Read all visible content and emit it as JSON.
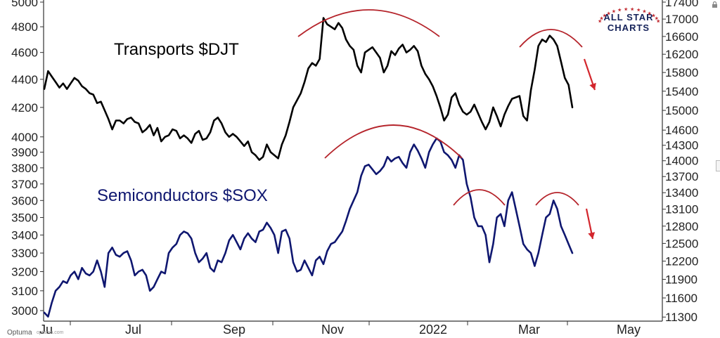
{
  "chart_data": {
    "type": "line",
    "x_ticks": [
      "Jul",
      "Sep",
      "Nov",
      "2022",
      "Mar",
      "May"
    ],
    "x_tick_partial": "Ju",
    "left_axis": {
      "ticks": [
        "5000",
        "4800",
        "4600",
        "4400",
        "4200",
        "4000",
        "3900",
        "3800",
        "3700",
        "3600",
        "3500",
        "3400",
        "3300",
        "3200",
        "3100",
        "3000"
      ],
      "scale": "log"
    },
    "right_axis": {
      "ticks": [
        "17400",
        "17000",
        "16600",
        "16200",
        "15800",
        "15400",
        "15000",
        "14600",
        "14300",
        "14000",
        "13700",
        "13400",
        "13100",
        "12800",
        "12500",
        "12200",
        "11900",
        "11600",
        "11300"
      ],
      "scale": "log"
    },
    "grid": false,
    "series": [
      {
        "name": "Transports $DJT",
        "color": "#000000",
        "axis": "left",
        "values": [
          4330,
          4460,
          4420,
          4380,
          4340,
          4370,
          4330,
          4370,
          4410,
          4390,
          4350,
          4330,
          4300,
          4290,
          4230,
          4240,
          4180,
          4120,
          4050,
          4110,
          4110,
          4090,
          4120,
          4130,
          4100,
          4090,
          4030,
          4050,
          4080,
          4010,
          4060,
          3970,
          4000,
          4010,
          4050,
          4040,
          3990,
          4010,
          3990,
          3960,
          4020,
          4040,
          3980,
          3990,
          4030,
          4110,
          4130,
          4090,
          4030,
          4000,
          4020,
          4000,
          3970,
          3940,
          3970,
          3900,
          3880,
          3850,
          3870,
          3950,
          3900,
          3880,
          3860,
          3950,
          4010,
          4100,
          4200,
          4250,
          4300,
          4380,
          4480,
          4520,
          4500,
          4550,
          4870,
          4820,
          4800,
          4780,
          4830,
          4790,
          4700,
          4650,
          4620,
          4500,
          4450,
          4600,
          4620,
          4640,
          4600,
          4560,
          4450,
          4500,
          4610,
          4580,
          4630,
          4660,
          4600,
          4620,
          4650,
          4610,
          4500,
          4440,
          4400,
          4350,
          4280,
          4200,
          4110,
          4150,
          4270,
          4300,
          4220,
          4170,
          4150,
          4170,
          4220,
          4160,
          4100,
          4050,
          4100,
          4200,
          4140,
          4070,
          4150,
          4210,
          4260,
          4270,
          4280,
          4140,
          4110,
          4320,
          4470,
          4650,
          4700,
          4680,
          4730,
          4700,
          4650,
          4530,
          4410,
          4360,
          4200
        ]
      },
      {
        "name": "Semiconductors $SOX",
        "color": "#0f1770",
        "axis": "left",
        "values": [
          2990,
          2970,
          3040,
          3100,
          3120,
          3150,
          3140,
          3180,
          3200,
          3160,
          3220,
          3190,
          3180,
          3200,
          3260,
          3200,
          3120,
          3300,
          3330,
          3290,
          3280,
          3300,
          3310,
          3260,
          3180,
          3200,
          3210,
          3180,
          3100,
          3120,
          3160,
          3200,
          3190,
          3300,
          3330,
          3350,
          3400,
          3420,
          3410,
          3380,
          3300,
          3250,
          3270,
          3300,
          3220,
          3200,
          3260,
          3250,
          3300,
          3370,
          3400,
          3360,
          3320,
          3380,
          3410,
          3380,
          3360,
          3420,
          3430,
          3470,
          3440,
          3400,
          3300,
          3420,
          3430,
          3380,
          3250,
          3200,
          3210,
          3260,
          3220,
          3180,
          3260,
          3280,
          3240,
          3310,
          3350,
          3360,
          3390,
          3420,
          3480,
          3550,
          3600,
          3650,
          3750,
          3810,
          3820,
          3790,
          3760,
          3780,
          3810,
          3870,
          3840,
          3860,
          3870,
          3830,
          3800,
          3900,
          3950,
          3910,
          3860,
          3800,
          3900,
          3950,
          3990,
          3970,
          3900,
          3880,
          3850,
          3800,
          3880,
          3850,
          3700,
          3620,
          3500,
          3450,
          3450,
          3400,
          3250,
          3350,
          3500,
          3520,
          3450,
          3600,
          3650,
          3550,
          3450,
          3350,
          3320,
          3300,
          3230,
          3300,
          3400,
          3500,
          3520,
          3600,
          3550,
          3450,
          3400,
          3350,
          3300
        ]
      }
    ],
    "annotations": [
      "Transports $DJT",
      "Semiconductors $SOX"
    ]
  },
  "logo": {
    "line1": "ALL STAR",
    "line2": "CHARTS"
  },
  "footer": {
    "brand": "Optuma",
    "url": "optuma.com"
  },
  "colors": {
    "arc": "#b5242b",
    "arrow": "#d3262d",
    "transports": "#000000",
    "semis": "#0f1770"
  }
}
